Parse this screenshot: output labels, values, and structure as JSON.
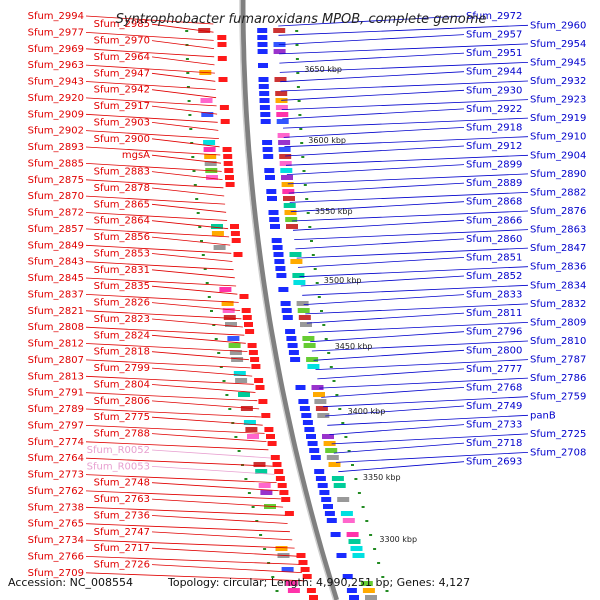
{
  "title": "Syntrophobacter fumaroxidans MPOB, complete genome",
  "footer": "Accession: NC_008554          Topology: circular; Length: 4,990,251 bp; Genes: 4,127",
  "colors": {
    "forward_label": "#e00000",
    "reverse_label": "#0000cc",
    "rna_label": "#e8a0d0",
    "backbone": "#808080",
    "tick": "#228b22"
  },
  "kbp_marks": [
    "3650 kbp",
    "3600 kbp",
    "3550 kbp",
    "3500 kbp",
    "3450 kbp",
    "3400 kbp",
    "3350 kbp",
    "3300 kbp"
  ],
  "left_labels": [
    "Sfum_2994",
    "Sfum_2985",
    "Sfum_2977",
    "Sfum_2970",
    "Sfum_2969",
    "Sfum_2964",
    "Sfum_2963",
    "Sfum_2947",
    "Sfum_2943",
    "Sfum_2942",
    "Sfum_2920",
    "Sfum_2917",
    "Sfum_2909",
    "Sfum_2903",
    "Sfum_2902",
    "Sfum_2900",
    "Sfum_2893",
    "mgsA",
    "Sfum_2885",
    "Sfum_2883",
    "Sfum_2875",
    "Sfum_2878",
    "Sfum_2870",
    "Sfum_2865",
    "Sfum_2872",
    "Sfum_2864",
    "Sfum_2857",
    "Sfum_2856",
    "Sfum_2849",
    "Sfum_2853",
    "Sfum_2843",
    "Sfum_2831",
    "Sfum_2845",
    "Sfum_2835",
    "Sfum_2837",
    "Sfum_2826",
    "Sfum_2821",
    "Sfum_2823",
    "Sfum_2808",
    "Sfum_2824",
    "Sfum_2812",
    "Sfum_2818",
    "Sfum_2807",
    "Sfum_2799",
    "Sfum_2813",
    "Sfum_2804",
    "Sfum_2791",
    "Sfum_2806",
    "Sfum_2789",
    "Sfum_2775",
    "Sfum_2797",
    "Sfum_2788",
    "Sfum_2774",
    "Sfum_R0052",
    "Sfum_2764",
    "Sfum_R0053",
    "Sfum_2773",
    "Sfum_2748",
    "Sfum_2762",
    "Sfum_2763",
    "Sfum_2738",
    "Sfum_2736",
    "Sfum_2765",
    "Sfum_2747",
    "Sfum_2734",
    "Sfum_2717",
    "Sfum_2766",
    "Sfum_2726",
    "Sfum_2709"
  ],
  "right_labels": [
    "Sfum_2972",
    "Sfum_2960",
    "Sfum_2957",
    "Sfum_2954",
    "Sfum_2951",
    "Sfum_2945",
    "Sfum_2944",
    "Sfum_2932",
    "Sfum_2930",
    "Sfum_2923",
    "Sfum_2922",
    "Sfum_2919",
    "Sfum_2918",
    "Sfum_2910",
    "Sfum_2912",
    "Sfum_2904",
    "Sfum_2899",
    "Sfum_2890",
    "Sfum_2889",
    "Sfum_2882",
    "Sfum_2868",
    "Sfum_2876",
    "Sfum_2866",
    "Sfum_2863",
    "Sfum_2860",
    "Sfum_2847",
    "Sfum_2851",
    "Sfum_2836",
    "Sfum_2852",
    "Sfum_2834",
    "Sfum_2833",
    "Sfum_2832",
    "Sfum_2811",
    "Sfum_2809",
    "Sfum_2796",
    "Sfum_2810",
    "Sfum_2800",
    "Sfum_2787",
    "Sfum_2777",
    "Sfum_2786",
    "Sfum_2768",
    "Sfum_2759",
    "Sfum_2749",
    "panB",
    "Sfum_2733",
    "Sfum_2725",
    "Sfum_2718",
    "Sfum_2708",
    "Sfum_2693"
  ]
}
